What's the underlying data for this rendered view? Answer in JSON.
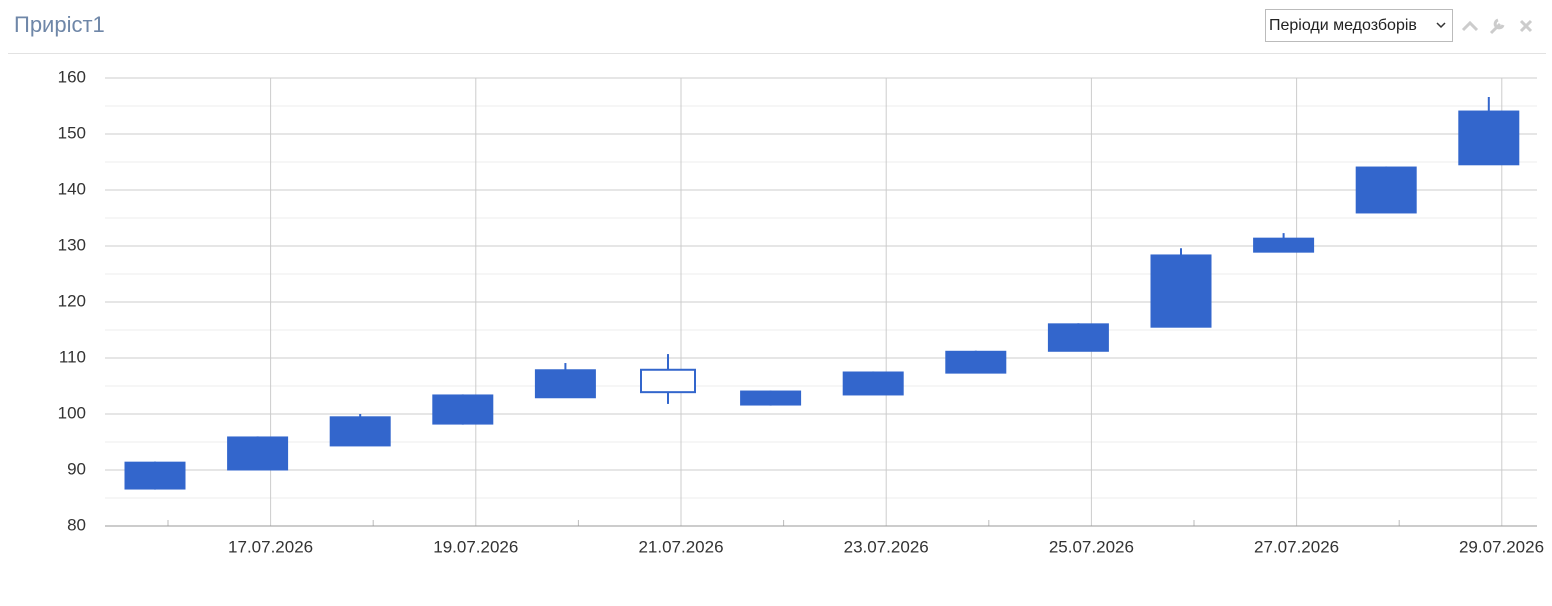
{
  "header": {
    "title": "Приріст1",
    "dropdown": "Періоди медозборів"
  },
  "chart_data": {
    "type": "candlestick",
    "color": "#3366cc",
    "x": [
      "16.07.2026",
      "17.07.2026",
      "18.07.2026",
      "19.07.2026",
      "20.07.2026",
      "21.07.2026",
      "22.07.2026",
      "23.07.2026",
      "24.07.2026",
      "25.07.2026",
      "26.07.2026",
      "27.07.2026",
      "28.07.2026",
      "29.07.2026"
    ],
    "open": [
      91.4,
      95.9,
      99.5,
      103.4,
      107.9,
      103.9,
      104.1,
      107.5,
      111.2,
      116.1,
      128.4,
      131.4,
      144.1,
      154.1
    ],
    "high": [
      91.5,
      96.0,
      100.0,
      103.5,
      109.1,
      110.7,
      104.2,
      107.6,
      111.3,
      116.2,
      129.6,
      132.3,
      144.2,
      156.6
    ],
    "low": [
      86.5,
      90.0,
      94.3,
      98.1,
      102.9,
      101.8,
      101.5,
      103.4,
      107.3,
      111.2,
      115.5,
      128.9,
      135.9,
      144.5
    ],
    "close": [
      86.6,
      90.0,
      94.3,
      98.2,
      102.9,
      107.9,
      101.6,
      103.4,
      107.3,
      111.2,
      115.5,
      128.9,
      135.9,
      144.5
    ],
    "ylim": [
      80,
      160
    ],
    "yticks": [
      80,
      90,
      100,
      110,
      120,
      130,
      140,
      150,
      160
    ],
    "minor_yticks": [
      85,
      95,
      105,
      115,
      125,
      135,
      145,
      155
    ],
    "xticks": [
      "17.07.2026",
      "19.07.2026",
      "21.07.2026",
      "23.07.2026",
      "25.07.2026",
      "27.07.2026",
      "29.07.2026"
    ],
    "grid": true
  }
}
